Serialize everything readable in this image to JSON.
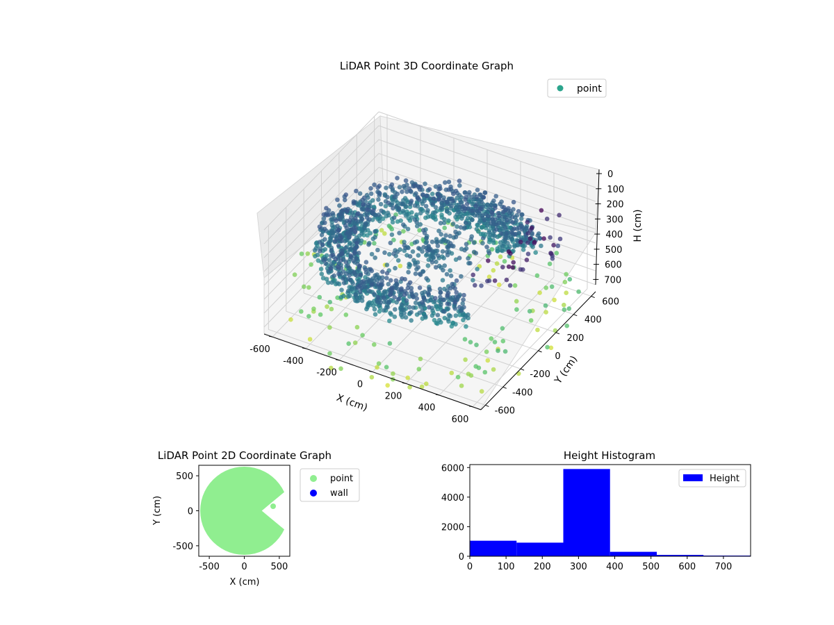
{
  "figure": {
    "background": "#ffffff"
  },
  "chart_data": [
    {
      "type": "scatter",
      "title": "LiDAR Point 3D Coordinate Graph",
      "xlabel": "X (cm)",
      "ylabel": "Y (cm)",
      "zlabel": "H (cm)",
      "xlim": [
        -650,
        650
      ],
      "ylim": [
        -650,
        650
      ],
      "zlim": [
        750,
        0
      ],
      "x_ticks": [
        "-600",
        "-400",
        "-200",
        "0",
        "200",
        "400",
        "600"
      ],
      "y_ticks": [
        "-600",
        "-400",
        "-200",
        "0",
        "200",
        "400",
        "600"
      ],
      "z_ticks": [
        "0",
        "100",
        "200",
        "300",
        "400",
        "500",
        "600",
        "700"
      ],
      "z_inverted": true,
      "grid": true,
      "colormap": "viridis",
      "legend": {
        "position": "top-right",
        "entries": [
          {
            "label": "point",
            "color": "#2ca58d"
          }
        ]
      },
      "series": [
        {
          "name": "point",
          "description_shape": "dense ring of points at radius ~450-600 cm around the origin, open on the +X side, heights mostly 250-400 cm",
          "points_sample": [
            {
              "x": -550,
              "y": 100,
              "z": 320
            },
            {
              "x": -500,
              "y": 300,
              "z": 300
            },
            {
              "x": -350,
              "y": 480,
              "z": 310
            },
            {
              "x": -150,
              "y": 560,
              "z": 300
            },
            {
              "x": 100,
              "y": 560,
              "z": 290
            },
            {
              "x": 300,
              "y": 470,
              "z": 300
            },
            {
              "x": -520,
              "y": -250,
              "z": 330
            },
            {
              "x": -380,
              "y": -450,
              "z": 340
            },
            {
              "x": -150,
              "y": -560,
              "z": 320
            },
            {
              "x": 120,
              "y": -560,
              "z": 330
            },
            {
              "x": 320,
              "y": -460,
              "z": 320
            },
            {
              "x": 0,
              "y": 0,
              "z": 300
            },
            {
              "x": 500,
              "y": 300,
              "z": 120
            },
            {
              "x": 550,
              "y": 450,
              "z": 60
            },
            {
              "x": 300,
              "y": -600,
              "z": 700
            },
            {
              "x": -400,
              "y": -600,
              "z": 720
            },
            {
              "x": 600,
              "y": -300,
              "z": 700
            }
          ]
        }
      ]
    },
    {
      "type": "scatter",
      "title": "LiDAR Point 2D Coordinate Graph",
      "xlabel": "X (cm)",
      "ylabel": "Y (cm)",
      "xlim": [
        -650,
        650
      ],
      "ylim": [
        -650,
        650
      ],
      "x_ticks": [
        -500,
        0,
        500
      ],
      "y_ticks": [
        500,
        0,
        -500
      ],
      "legend": {
        "position": "outside-right",
        "entries": [
          {
            "label": "point",
            "color": "#90ee90"
          },
          {
            "label": "wall",
            "color": "#0000ff"
          }
        ]
      },
      "series": [
        {
          "name": "point",
          "color": "#90ee90",
          "shape": "filled disc of radius ~600 cm with a wedge-shaped notch open toward +X"
        },
        {
          "name": "wall",
          "color": "#0000ff",
          "values": []
        }
      ]
    },
    {
      "type": "bar",
      "title": "Height Histogram",
      "xlabel": "",
      "ylabel": "",
      "xlim": [
        0,
        775
      ],
      "ylim": [
        0,
        6200
      ],
      "x_ticks": [
        0,
        100,
        200,
        300,
        400,
        500,
        600,
        700
      ],
      "y_ticks": [
        0,
        2000,
        4000,
        6000
      ],
      "bar_color": "#0000ff",
      "legend": {
        "position": "top-right",
        "entries": [
          {
            "label": "Height",
            "color": "#0000ff"
          }
        ]
      },
      "bins": [
        {
          "x0": 0,
          "x1": 129,
          "count": 1050
        },
        {
          "x0": 129,
          "x1": 258,
          "count": 920
        },
        {
          "x0": 258,
          "x1": 387,
          "count": 5900
        },
        {
          "x0": 387,
          "x1": 516,
          "count": 300
        },
        {
          "x0": 516,
          "x1": 645,
          "count": 90
        },
        {
          "x0": 645,
          "x1": 775,
          "count": 45
        }
      ]
    }
  ]
}
